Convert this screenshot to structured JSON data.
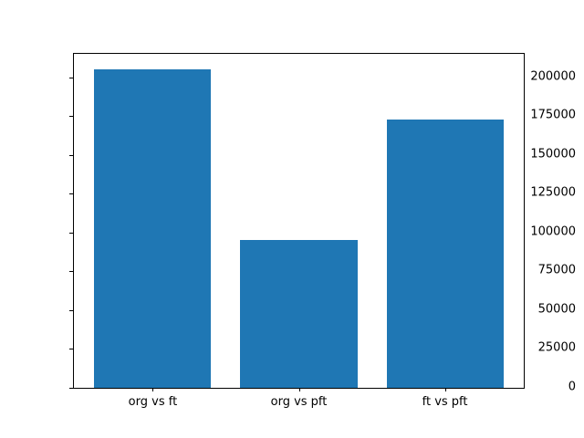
{
  "chart_data": {
    "type": "bar",
    "categories": [
      "org vs ft",
      "org vs pft",
      "ft vs pft"
    ],
    "values": [
      205000,
      95000,
      173000
    ],
    "title": "",
    "xlabel": "",
    "ylabel": "",
    "yticks": [
      0,
      25000,
      50000,
      75000,
      100000,
      125000,
      150000,
      175000,
      200000
    ],
    "ylim": [
      0,
      215250
    ],
    "xlim": [
      -0.54,
      2.54
    ],
    "bar_width": 0.8,
    "bar_color": "#1f77b4",
    "axis_color": "#000000",
    "background_color": "#ffffff",
    "grid": false,
    "legend": "none"
  }
}
